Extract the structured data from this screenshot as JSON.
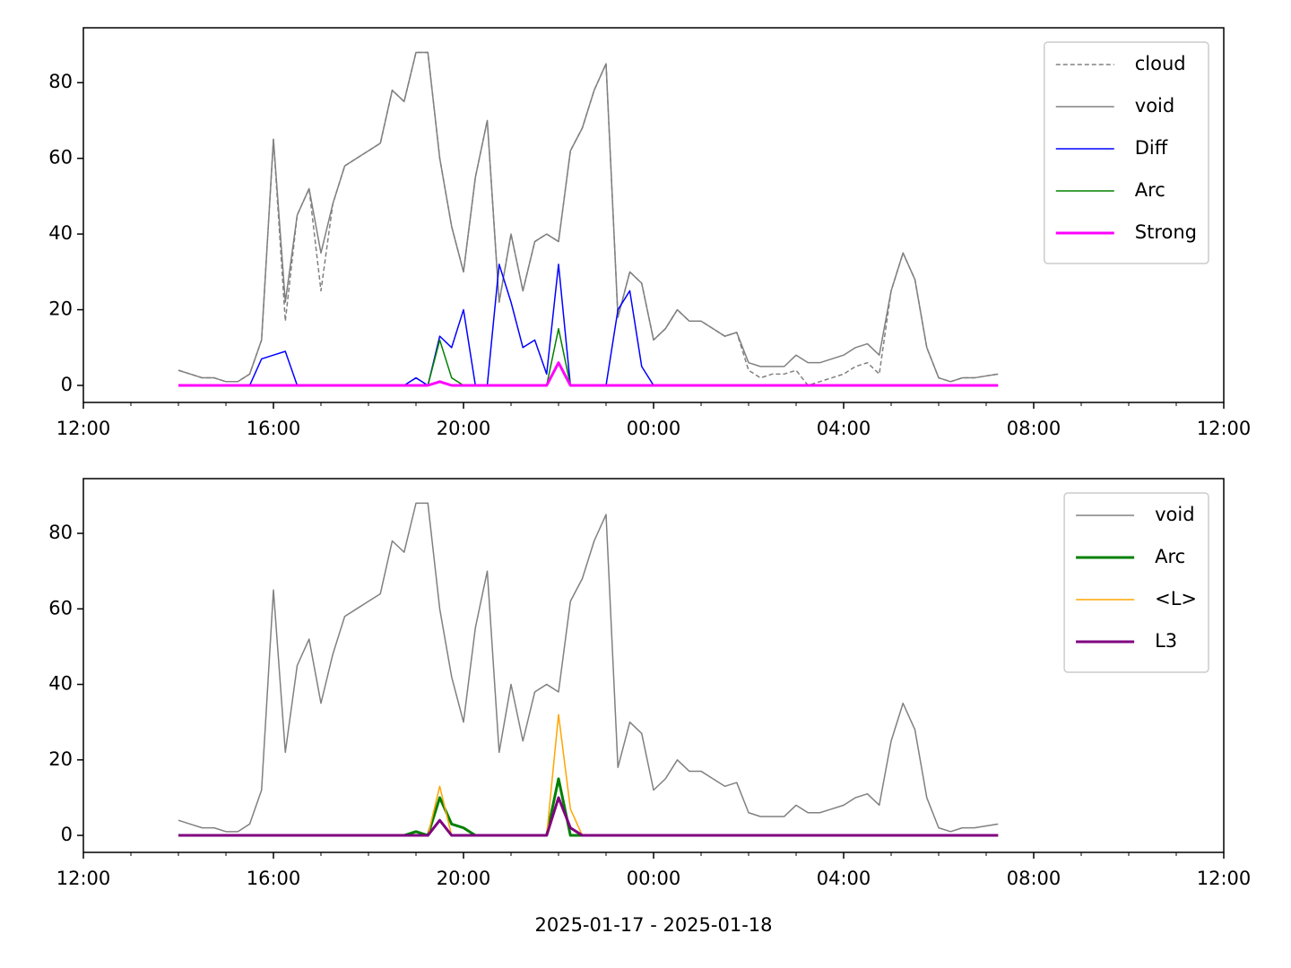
{
  "chart_data": [
    {
      "type": "line",
      "x": [
        "14:00",
        "14:15",
        "14:30",
        "14:45",
        "15:00",
        "15:15",
        "15:30",
        "15:45",
        "16:00",
        "16:15",
        "16:30",
        "16:45",
        "17:00",
        "17:15",
        "17:30",
        "17:45",
        "18:00",
        "18:15",
        "18:30",
        "18:45",
        "19:00",
        "19:15",
        "19:30",
        "19:45",
        "20:00",
        "20:15",
        "20:30",
        "20:45",
        "21:00",
        "21:15",
        "21:30",
        "21:45",
        "22:00",
        "22:15",
        "22:30",
        "22:45",
        "23:00",
        "23:15",
        "23:30",
        "23:45",
        "00:00",
        "00:15",
        "00:30",
        "00:45",
        "01:00",
        "01:15",
        "01:30",
        "01:45",
        "02:00",
        "02:15",
        "02:30",
        "02:45",
        "03:00",
        "03:15",
        "03:30",
        "03:45",
        "04:00",
        "04:15",
        "04:30",
        "04:45",
        "05:00",
        "05:15",
        "05:30",
        "05:45",
        "06:00",
        "06:15",
        "06:30",
        "06:45",
        "07:00",
        "07:15"
      ],
      "series": [
        {
          "name": "cloud",
          "color": "#808080",
          "width": 1.5,
          "style": "dashed",
          "values": [
            4,
            3,
            2,
            2,
            1,
            1,
            3,
            12,
            65,
            17,
            45,
            52,
            25,
            48,
            58,
            60,
            62,
            64,
            78,
            75,
            88,
            88,
            60,
            42,
            30,
            55,
            70,
            22,
            40,
            25,
            38,
            40,
            38,
            62,
            68,
            78,
            85,
            18,
            30,
            27,
            12,
            15,
            20,
            17,
            17,
            15,
            13,
            14,
            4,
            2,
            3,
            3,
            4,
            0,
            1,
            2,
            3,
            5,
            6,
            3,
            25,
            35,
            28,
            10,
            2,
            1,
            2,
            2,
            2.5,
            3
          ]
        },
        {
          "name": "void",
          "color": "#808080",
          "width": 1.5,
          "values": [
            4,
            3,
            2,
            2,
            1,
            1,
            3,
            12,
            65,
            22,
            45,
            52,
            35,
            48,
            58,
            60,
            62,
            64,
            78,
            75,
            88,
            88,
            60,
            42,
            30,
            55,
            70,
            22,
            40,
            25,
            38,
            40,
            38,
            62,
            68,
            78,
            85,
            18,
            30,
            27,
            12,
            15,
            20,
            17,
            17,
            15,
            13,
            14,
            6,
            5,
            5,
            5,
            8,
            6,
            6,
            7,
            8,
            10,
            11,
            8,
            25,
            35,
            28,
            10,
            2,
            1,
            2,
            2,
            2.5,
            3
          ]
        },
        {
          "name": "Diff",
          "color": "#0000ff",
          "width": 1.5,
          "values": [
            0,
            0,
            0,
            0,
            0,
            0,
            0,
            7,
            8,
            9,
            0,
            0,
            0,
            0,
            0,
            0,
            0,
            0,
            0,
            0,
            2,
            0,
            13,
            10,
            20,
            0,
            0,
            32,
            22,
            10,
            12,
            3,
            32,
            0,
            0,
            0,
            0,
            20,
            25,
            5,
            0,
            0,
            0,
            0,
            0,
            0,
            0,
            0,
            0,
            0,
            0,
            0,
            0,
            0,
            0,
            0,
            0,
            0,
            0,
            0,
            0,
            0,
            0,
            0,
            0,
            0,
            0,
            0,
            0,
            0
          ]
        },
        {
          "name": "Arc",
          "color": "#008000",
          "width": 1.5,
          "values": [
            0,
            0,
            0,
            0,
            0,
            0,
            0,
            0,
            0,
            0,
            0,
            0,
            0,
            0,
            0,
            0,
            0,
            0,
            0,
            0,
            0,
            0,
            12,
            2,
            0,
            0,
            0,
            0,
            0,
            0,
            0,
            0,
            15,
            0,
            0,
            0,
            0,
            0,
            0,
            0,
            0,
            0,
            0,
            0,
            0,
            0,
            0,
            0,
            0,
            0,
            0,
            0,
            0,
            0,
            0,
            0,
            0,
            0,
            0,
            0,
            0,
            0,
            0,
            0,
            0,
            0,
            0,
            0,
            0,
            0
          ]
        },
        {
          "name": "Strong",
          "color": "#ff00ff",
          "width": 3,
          "values": [
            0,
            0,
            0,
            0,
            0,
            0,
            0,
            0,
            0,
            0,
            0,
            0,
            0,
            0,
            0,
            0,
            0,
            0,
            0,
            0,
            0,
            0,
            1,
            0,
            0,
            0,
            0,
            0,
            0,
            0,
            0,
            0,
            6,
            0,
            0,
            0,
            0,
            0,
            0,
            0,
            0,
            0,
            0,
            0,
            0,
            0,
            0,
            0,
            0,
            0,
            0,
            0,
            0,
            0,
            0,
            0,
            0,
            0,
            0,
            0,
            0,
            0,
            0,
            0,
            0,
            0,
            0,
            0,
            0,
            0
          ]
        }
      ],
      "xlim": [
        "12:00",
        "12:00"
      ],
      "xticks": [
        "12:00",
        "16:00",
        "20:00",
        "00:00",
        "04:00",
        "08:00",
        "12:00"
      ],
      "ylim": [
        -4.5,
        94.5
      ],
      "yticks": [
        0,
        20,
        40,
        60,
        80
      ],
      "legend": "upper right"
    },
    {
      "type": "line",
      "x": [
        "14:00",
        "14:15",
        "14:30",
        "14:45",
        "15:00",
        "15:15",
        "15:30",
        "15:45",
        "16:00",
        "16:15",
        "16:30",
        "16:45",
        "17:00",
        "17:15",
        "17:30",
        "17:45",
        "18:00",
        "18:15",
        "18:30",
        "18:45",
        "19:00",
        "19:15",
        "19:30",
        "19:45",
        "20:00",
        "20:15",
        "20:30",
        "20:45",
        "21:00",
        "21:15",
        "21:30",
        "21:45",
        "22:00",
        "22:15",
        "22:30",
        "22:45",
        "23:00",
        "23:15",
        "23:30",
        "23:45",
        "00:00",
        "00:15",
        "00:30",
        "00:45",
        "01:00",
        "01:15",
        "01:30",
        "01:45",
        "02:00",
        "02:15",
        "02:30",
        "02:45",
        "03:00",
        "03:15",
        "03:30",
        "03:45",
        "04:00",
        "04:15",
        "04:30",
        "04:45",
        "05:00",
        "05:15",
        "05:30",
        "05:45",
        "06:00",
        "06:15",
        "06:30",
        "06:45",
        "07:00",
        "07:15"
      ],
      "series": [
        {
          "name": "void",
          "color": "#808080",
          "width": 1.5,
          "values": [
            4,
            3,
            2,
            2,
            1,
            1,
            3,
            12,
            65,
            22,
            45,
            52,
            35,
            48,
            58,
            60,
            62,
            64,
            78,
            75,
            88,
            88,
            60,
            42,
            30,
            55,
            70,
            22,
            40,
            25,
            38,
            40,
            38,
            62,
            68,
            78,
            85,
            18,
            30,
            27,
            12,
            15,
            20,
            17,
            17,
            15,
            13,
            14,
            6,
            5,
            5,
            5,
            8,
            6,
            6,
            7,
            8,
            10,
            11,
            8,
            25,
            35,
            28,
            10,
            2,
            1,
            2,
            2,
            2.5,
            3
          ]
        },
        {
          "name": "Arc",
          "color": "#008000",
          "width": 3,
          "values": [
            0,
            0,
            0,
            0,
            0,
            0,
            0,
            0,
            0,
            0,
            0,
            0,
            0,
            0,
            0,
            0,
            0,
            0,
            0,
            0,
            1,
            0,
            10,
            3,
            2,
            0,
            0,
            0,
            0,
            0,
            0,
            0,
            15,
            0,
            0,
            0,
            0,
            0,
            0,
            0,
            0,
            0,
            0,
            0,
            0,
            0,
            0,
            0,
            0,
            0,
            0,
            0,
            0,
            0,
            0,
            0,
            0,
            0,
            0,
            0,
            0,
            0,
            0,
            0,
            0,
            0,
            0,
            0,
            0,
            0
          ]
        },
        {
          "name": "<L>",
          "color": "#ffa500",
          "width": 1.5,
          "values": [
            0,
            0,
            0,
            0,
            0,
            0,
            0,
            0,
            0,
            0,
            0,
            0,
            0,
            0,
            0,
            0,
            0,
            0,
            0,
            0,
            0,
            0,
            13,
            0,
            0,
            0,
            0,
            0,
            0,
            0,
            0,
            0,
            32,
            7,
            0,
            0,
            0,
            0,
            0,
            0,
            0,
            0,
            0,
            0,
            0,
            0,
            0,
            0,
            0,
            0,
            0,
            0,
            0,
            0,
            0,
            0,
            0,
            0,
            0,
            0,
            0,
            0,
            0,
            0,
            0,
            0,
            0,
            0,
            0,
            0
          ]
        },
        {
          "name": "L3",
          "color": "#800080",
          "width": 3,
          "values": [
            0,
            0,
            0,
            0,
            0,
            0,
            0,
            0,
            0,
            0,
            0,
            0,
            0,
            0,
            0,
            0,
            0,
            0,
            0,
            0,
            0,
            0,
            4,
            0,
            0,
            0,
            0,
            0,
            0,
            0,
            0,
            0,
            10,
            2,
            0,
            0,
            0,
            0,
            0,
            0,
            0,
            0,
            0,
            0,
            0,
            0,
            0,
            0,
            0,
            0,
            0,
            0,
            0,
            0,
            0,
            0,
            0,
            0,
            0,
            0,
            0,
            0,
            0,
            0,
            0,
            0,
            0,
            0,
            0,
            0
          ]
        }
      ],
      "xlim": [
        "12:00",
        "12:00"
      ],
      "xticks": [
        "12:00",
        "16:00",
        "20:00",
        "00:00",
        "04:00",
        "08:00",
        "12:00"
      ],
      "ylim": [
        -4.5,
        94.5
      ],
      "yticks": [
        0,
        20,
        40,
        60,
        80
      ],
      "legend": "upper right",
      "xlabel": "2025-01-17 - 2025-01-18"
    }
  ]
}
